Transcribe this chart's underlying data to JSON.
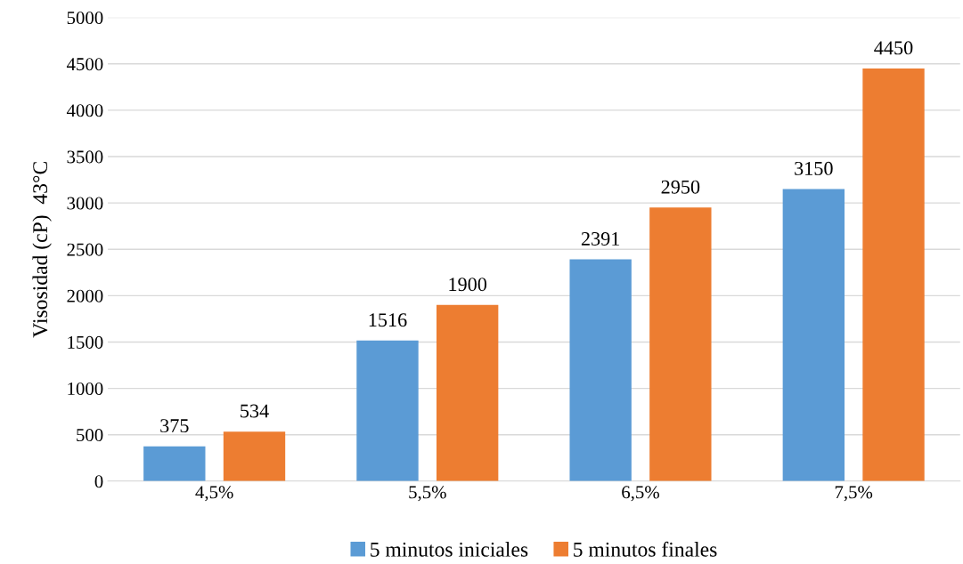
{
  "chart_data": {
    "type": "bar",
    "ylabel": "Visosidad (cP)  43°C",
    "categories": [
      "4,5%",
      "5,5%",
      "6,5%",
      "7,5%"
    ],
    "series": [
      {
        "name": "5 minutos iniciales",
        "color": "#5b9bd5",
        "values": [
          375,
          1516,
          2391,
          3150
        ]
      },
      {
        "name": "5 minutos finales",
        "color": "#ed7d31",
        "values": [
          534,
          1900,
          2950,
          4450
        ]
      }
    ],
    "ylim": [
      0,
      5000
    ],
    "yticks": [
      0,
      500,
      1000,
      1500,
      2000,
      2500,
      3000,
      3500,
      4000,
      4500,
      5000
    ],
    "grid": "y",
    "legend": "bottom",
    "data_labels": true
  }
}
